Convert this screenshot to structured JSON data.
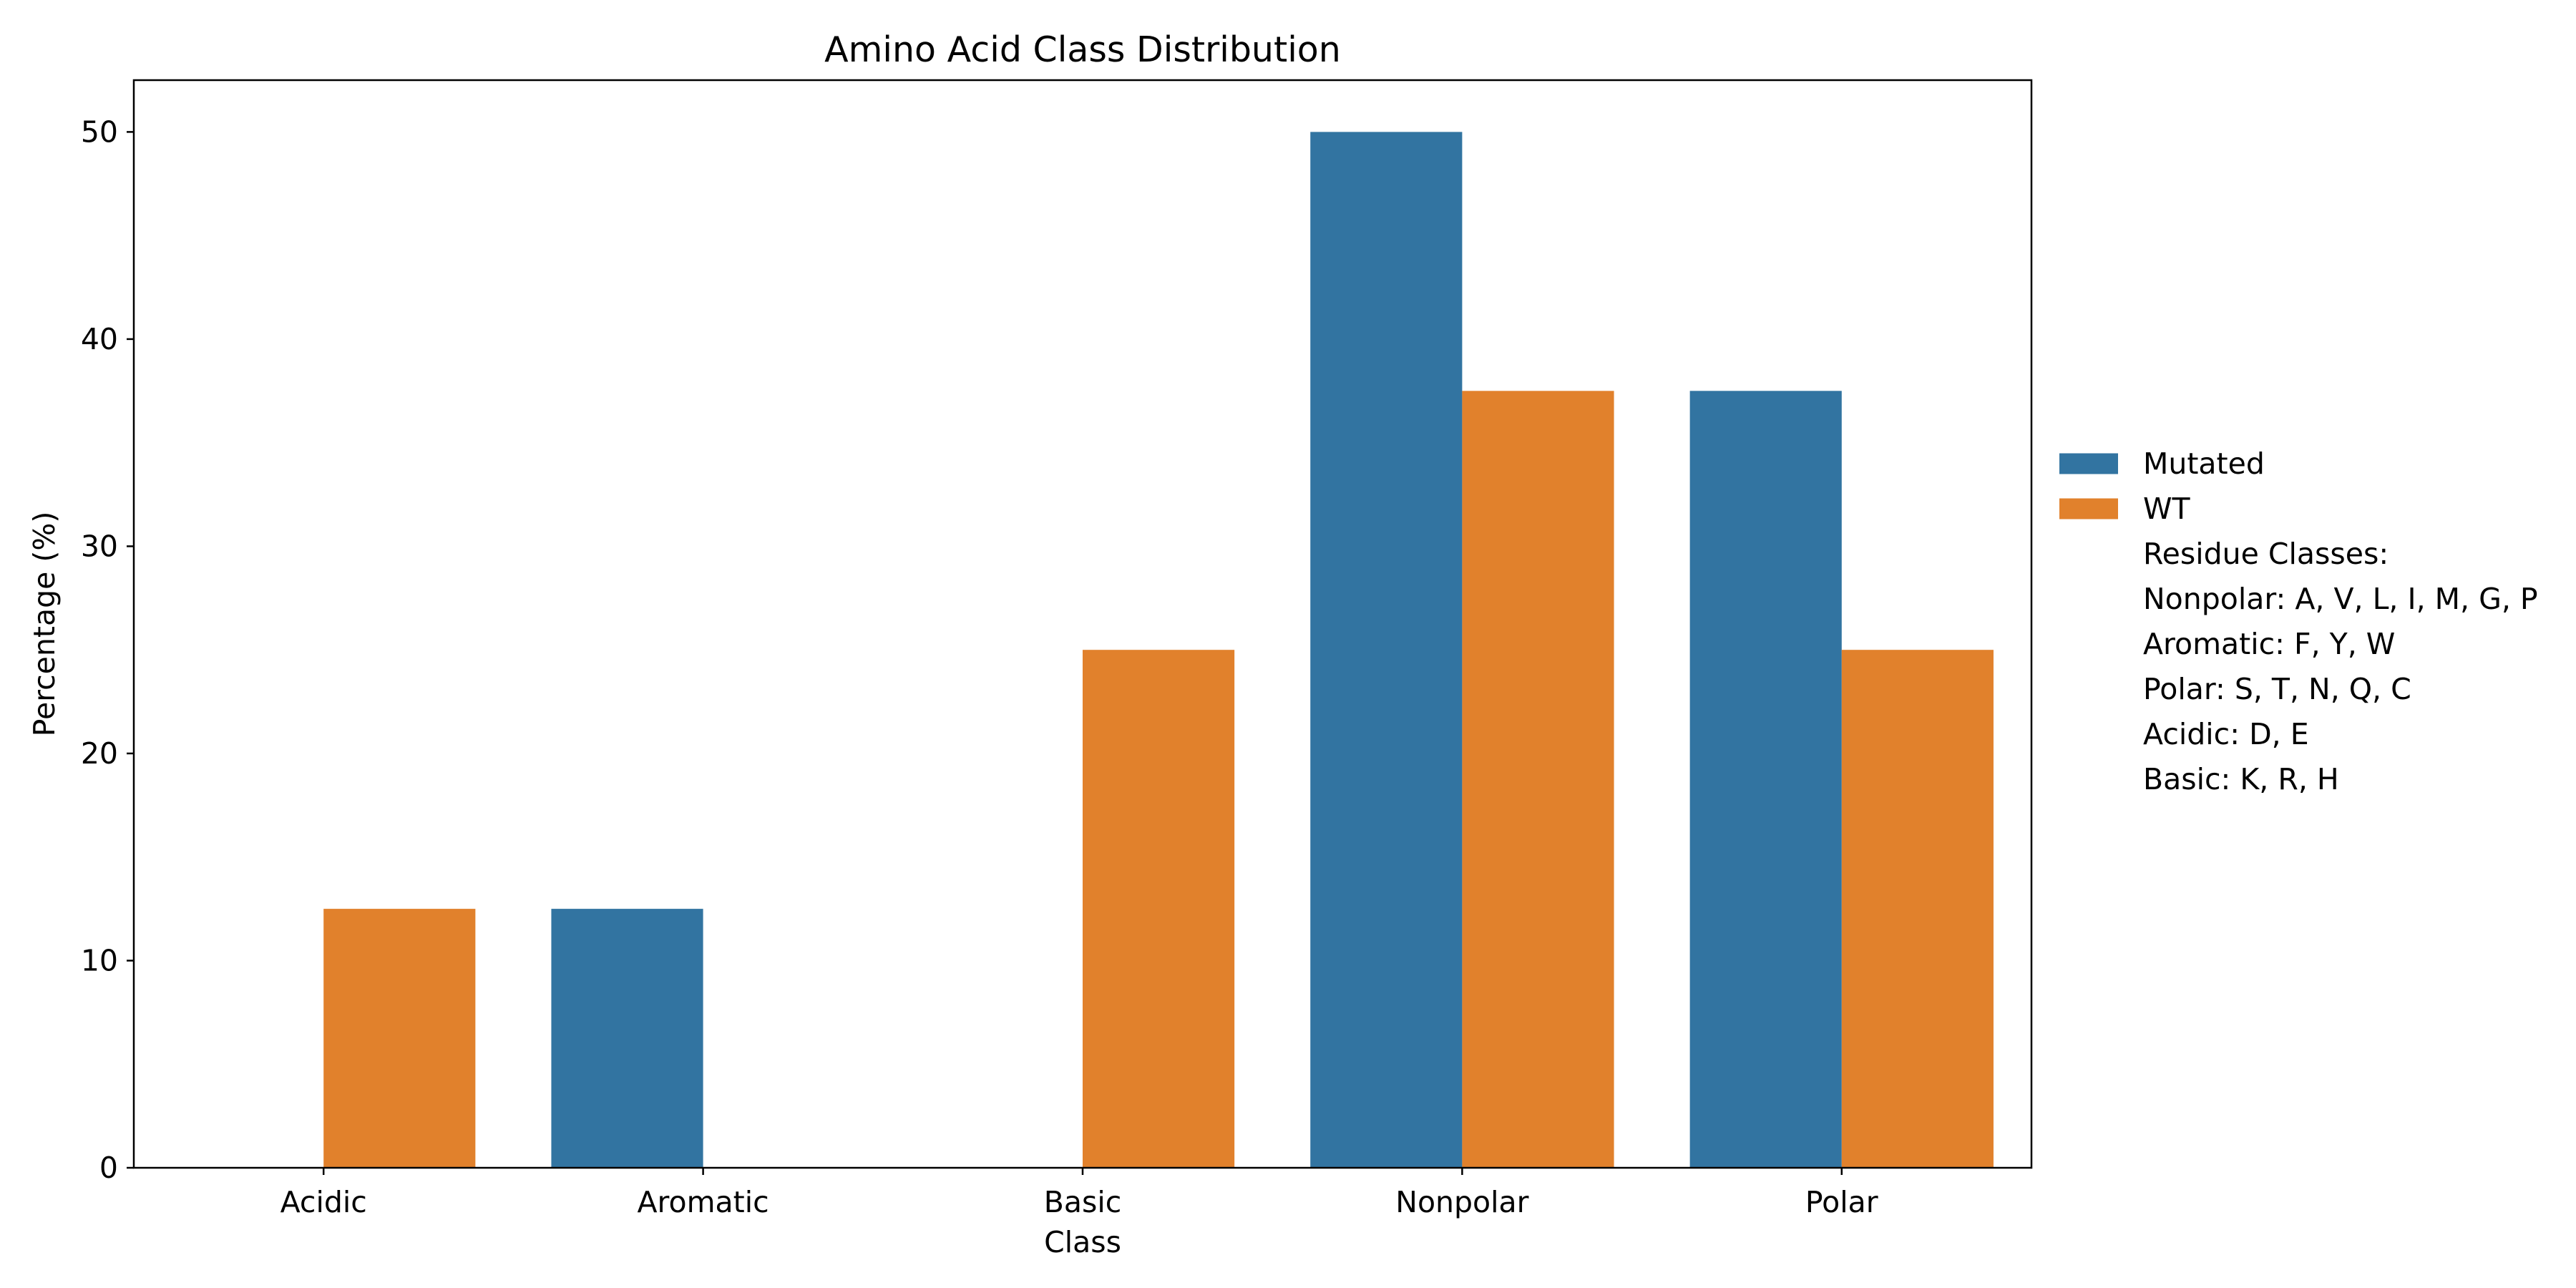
{
  "chart_data": {
    "type": "bar",
    "title": "Amino Acid Class Distribution",
    "xlabel": "Class",
    "ylabel": "Percentage (%)",
    "categories": [
      "Acidic",
      "Aromatic",
      "Basic",
      "Nonpolar",
      "Polar"
    ],
    "series": [
      {
        "name": "Mutated",
        "color": "#3274a1",
        "values": [
          0,
          12.5,
          0,
          50,
          37.5
        ]
      },
      {
        "name": "WT",
        "color": "#e1812c",
        "values": [
          12.5,
          0,
          25,
          37.5,
          25
        ]
      }
    ],
    "ylim": [
      0,
      52.5
    ],
    "yticks": [
      0,
      10,
      20,
      30,
      40,
      50
    ],
    "grid": false,
    "legend": {
      "placement": "right",
      "notes": [
        "Residue Classes:",
        "Nonpolar: A, V, L, I, M, G, P",
        "Aromatic: F, Y, W",
        "Polar: S, T, N, Q, C",
        "Acidic: D, E",
        "Basic: K, R, H"
      ]
    }
  }
}
